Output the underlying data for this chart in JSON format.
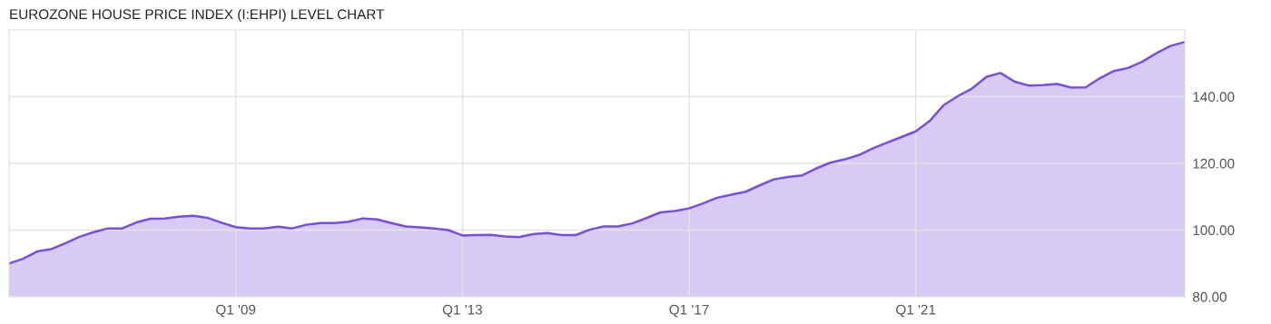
{
  "chart_data": {
    "type": "area",
    "title": "EUROZONE HOUSE PRICE INDEX (I:EHPI) LEVEL CHART",
    "x": [
      "2005-01",
      "2005-04",
      "2005-07",
      "2005-10",
      "2006-01",
      "2006-04",
      "2006-07",
      "2006-10",
      "2007-01",
      "2007-04",
      "2007-07",
      "2007-10",
      "2008-01",
      "2008-04",
      "2008-07",
      "2008-10",
      "2009-01",
      "2009-04",
      "2009-07",
      "2009-10",
      "2010-01",
      "2010-04",
      "2010-07",
      "2010-10",
      "2011-01",
      "2011-04",
      "2011-07",
      "2011-10",
      "2012-01",
      "2012-04",
      "2012-07",
      "2012-10",
      "2013-01",
      "2013-04",
      "2013-07",
      "2013-10",
      "2014-01",
      "2014-04",
      "2014-07",
      "2014-10",
      "2015-01",
      "2015-04",
      "2015-07",
      "2015-10",
      "2016-01",
      "2016-04",
      "2016-07",
      "2016-10",
      "2017-01",
      "2017-04",
      "2017-07",
      "2017-10",
      "2018-01",
      "2018-04",
      "2018-07",
      "2018-10",
      "2019-01",
      "2019-04",
      "2019-07",
      "2019-10",
      "2020-01",
      "2020-04",
      "2020-07",
      "2020-10",
      "2021-01",
      "2021-04",
      "2021-07",
      "2021-10",
      "2022-01",
      "2022-04",
      "2022-07",
      "2022-10",
      "2023-01",
      "2023-04",
      "2023-07",
      "2023-10",
      "2024-01",
      "2024-04",
      "2024-07",
      "2024-10",
      "2025-01",
      "2025-04",
      "2025-07",
      "2025-10"
    ],
    "series": [
      {
        "color": "#7a4fd8",
        "values": [
          90.0,
          91.4,
          93.6,
          94.3,
          96.1,
          98.0,
          99.4,
          100.5,
          100.5,
          102.3,
          103.4,
          103.5,
          104.0,
          104.3,
          103.7,
          102.2,
          100.9,
          100.5,
          100.5,
          101.0,
          100.5,
          101.6,
          102.1,
          102.1,
          102.5,
          103.5,
          103.2,
          102.1,
          101.1,
          100.8,
          100.5,
          100.0,
          98.4,
          98.5,
          98.6,
          98.1,
          97.9,
          98.8,
          99.1,
          98.5,
          98.5,
          100.1,
          101.1,
          101.1,
          102.0,
          103.6,
          105.3,
          105.7,
          106.5,
          108.0,
          109.7,
          110.6,
          111.5,
          113.4,
          115.2,
          115.9,
          116.4,
          118.5,
          120.2,
          121.2,
          122.5,
          124.5,
          126.2,
          127.9,
          129.6,
          132.7,
          137.5,
          140.2,
          142.5,
          145.9,
          147.1,
          144.5,
          143.3,
          143.5,
          143.8,
          142.7,
          142.8,
          145.5,
          147.7,
          148.6,
          150.5,
          153.0,
          155.2,
          156.4
        ]
      }
    ],
    "xlim": [
      "2005-01",
      "2025-10"
    ],
    "xticks": [
      {
        "value": "2009-01",
        "label": "Q1 '09"
      },
      {
        "value": "2013-01",
        "label": "Q1 '13"
      },
      {
        "value": "2017-01",
        "label": "Q1 '17"
      },
      {
        "value": "2021-01",
        "label": "Q1 '21"
      }
    ],
    "ylim": [
      80,
      160
    ],
    "yticks": [
      {
        "value": 80,
        "label": "80.00"
      },
      {
        "value": 100,
        "label": "100.00"
      },
      {
        "value": 120,
        "label": "120.00"
      },
      {
        "value": 140,
        "label": "140.00"
      }
    ],
    "grid": true,
    "marker": "none",
    "line_style": "solid"
  }
}
